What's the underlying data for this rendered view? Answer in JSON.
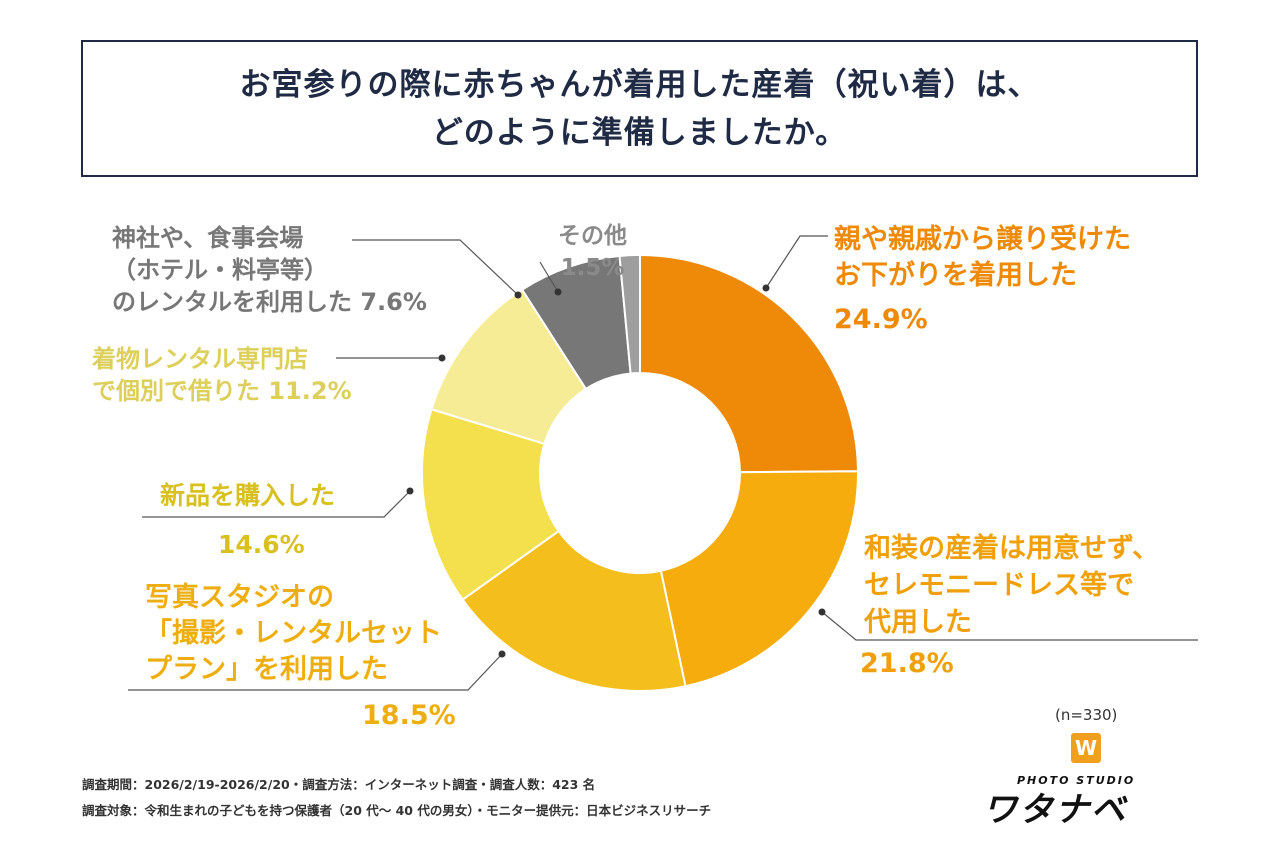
{
  "title": {
    "line1": "お宮参りの際に赤ちゃんが着用した産着（祝い着）は、",
    "line2": "どのように準備しましたか。"
  },
  "chart_data": {
    "type": "donut",
    "slices": [
      {
        "label": "親や親戚から譲り受けたお下がりを着用した",
        "lines": [
          "親や親戚から譲り受けた",
          "お下がりを着用した"
        ],
        "value": 24.9,
        "pct": "24.9%",
        "color": "#ee8a07"
      },
      {
        "label": "和装の産着は用意せず、セレモニードレス等で代用した",
        "lines": [
          "和装の産着は用意せず、",
          "セレモニードレス等で",
          "代用した"
        ],
        "value": 21.8,
        "pct": "21.8%",
        "color": "#f5ac0c"
      },
      {
        "label": "写真スタジオの「撮影・レンタルセットプラン」を利用した",
        "lines": [
          "写真スタジオの",
          "「撮影・レンタルセット",
          "プラン」を利用した"
        ],
        "value": 18.5,
        "pct": "18.5%",
        "color": "#f4bf1c"
      },
      {
        "label": "新品を購入した",
        "lines": [
          "新品を購入した"
        ],
        "value": 14.6,
        "pct": "14.6%",
        "color": "#f4e04c"
      },
      {
        "label": "着物レンタル専門店で個別で借りた",
        "lines": [
          "着物レンタル専門店",
          "で個別で借りた 11.2%"
        ],
        "value": 11.2,
        "pct": "11.2%",
        "color": "#f7ec96"
      },
      {
        "label": "神社や、食事会場（ホテル・料亭等）のレンタルを利用した",
        "lines": [
          "神社や、食事会場",
          "（ホテル・料亭等）",
          "のレンタルを利用した 7.6%"
        ],
        "value": 7.6,
        "pct": "7.6%",
        "color": "#777777"
      },
      {
        "label": "その他",
        "lines": [
          "その他",
          "1.5%"
        ],
        "value": 1.5,
        "pct": "1.5%",
        "color": "#9e9e9e"
      }
    ]
  },
  "sample_size": "(n=330)",
  "survey": {
    "line1": "調査期間：2026/2/19-2026/2/20・調査方法：インターネット調査・調査人数：423 名",
    "line2": "調査対象：令和生まれの子どもを持つ保護者（20 代〜 40 代の男女）・モニター提供元：日本ビジネスリサーチ"
  },
  "logo": {
    "mark": "W",
    "sub": "PHOTO STUDIO",
    "main": "ワタナベ"
  }
}
